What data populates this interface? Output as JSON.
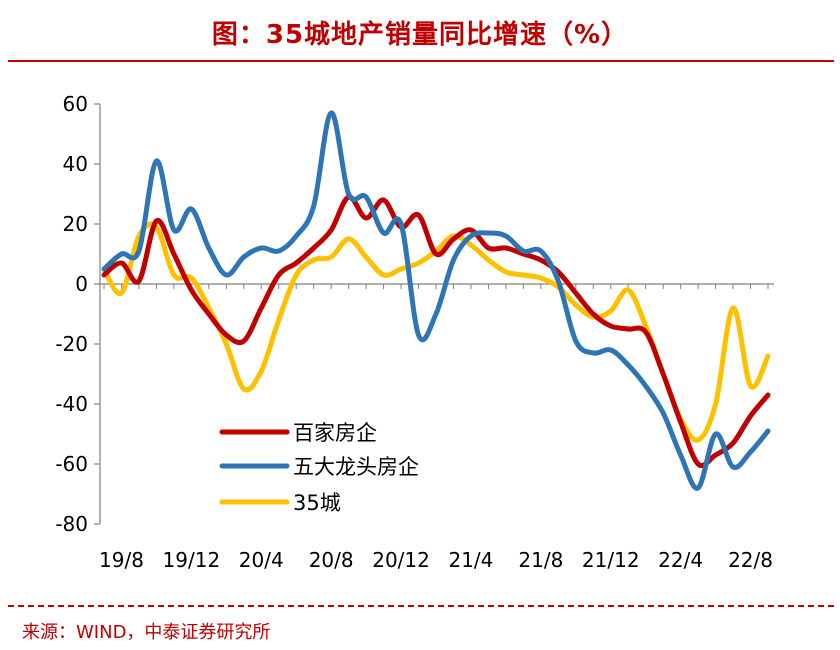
{
  "header": {
    "title": "图：35城地产销量同比增速（%）"
  },
  "footer": {
    "source": "来源：WIND，中泰证券研究所"
  },
  "chart_data": {
    "type": "line",
    "title": "图：35城地产销量同比增速（%）",
    "xlabel": "",
    "ylabel": "",
    "ylim": [
      -80,
      60
    ],
    "y_ticks": [
      60,
      40,
      20,
      0,
      -20,
      -40,
      -60,
      -80
    ],
    "x_tick_labels": [
      "19/8",
      "19/12",
      "20/4",
      "20/8",
      "20/12",
      "21/4",
      "21/8",
      "21/12",
      "22/4",
      "22/8"
    ],
    "x": [
      "19/7",
      "19/8",
      "19/9",
      "19/10",
      "19/11",
      "19/12",
      "20/1",
      "20/2",
      "20/3",
      "20/4",
      "20/5",
      "20/6",
      "20/7",
      "20/8",
      "20/9",
      "20/10",
      "20/11",
      "20/12",
      "21/1",
      "21/2",
      "21/3",
      "21/4",
      "21/5",
      "21/6",
      "21/7",
      "21/8",
      "21/9",
      "21/10",
      "21/11",
      "21/12",
      "22/1",
      "22/2",
      "22/3",
      "22/4",
      "22/5",
      "22/6",
      "22/7",
      "22/8",
      "22/9"
    ],
    "grid": false,
    "legend_position": "lower-left",
    "series": [
      {
        "name": "百家房企",
        "color": "#c00000",
        "values": [
          3,
          7,
          1,
          21,
          10,
          -2,
          -10,
          -17,
          -19,
          -8,
          3,
          7,
          12,
          18,
          29,
          22,
          28,
          19,
          23,
          10,
          15,
          18,
          12,
          12,
          10,
          8,
          4,
          -3,
          -10,
          -14,
          -15,
          -16,
          -30,
          -46,
          -60,
          -57,
          -53,
          -44,
          -37
        ]
      },
      {
        "name": "五大龙头房企",
        "color": "#2e75b6",
        "values": [
          5,
          10,
          11,
          41,
          18,
          25,
          12,
          3,
          9,
          12,
          11,
          16,
          26,
          57,
          30,
          29,
          17,
          20,
          -17,
          -10,
          8,
          16,
          17,
          16,
          11,
          11,
          1,
          -19,
          -23,
          -22,
          -27,
          -34,
          -43,
          -57,
          -68,
          -50,
          -61,
          -56,
          -49
        ]
      },
      {
        "name": "35城",
        "color": "#ffc000",
        "values": [
          5,
          -3,
          16,
          19,
          3,
          2,
          -8,
          -20,
          -35,
          -29,
          -12,
          3,
          8,
          9,
          15,
          9,
          3,
          5,
          7,
          11,
          16,
          13,
          8,
          4,
          3,
          2,
          -1,
          -7,
          -11,
          -9,
          -2,
          -14,
          -30,
          -45,
          -52,
          -40,
          -8,
          -34,
          -24
        ]
      }
    ]
  }
}
